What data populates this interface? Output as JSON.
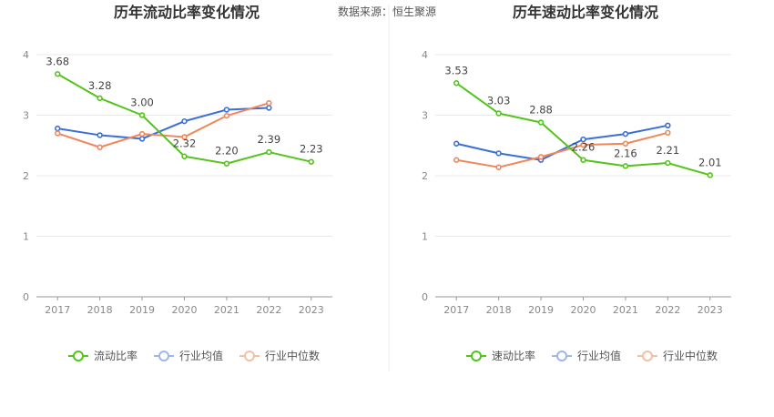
{
  "source_note": "数据来源：恒生聚源",
  "chart_data": [
    {
      "type": "line",
      "title": "历年流动比率变化情况",
      "x": [
        "2017",
        "2018",
        "2019",
        "2020",
        "2021",
        "2022",
        "2023"
      ],
      "ylim": [
        0,
        4
      ],
      "yticks": [
        "0",
        "1",
        "2",
        "3",
        "4"
      ],
      "grid": true,
      "legend_position": "bottom",
      "series": [
        {
          "name": "流动比率",
          "color": "#52c41a",
          "values": [
            3.68,
            3.28,
            3.0,
            2.32,
            2.2,
            2.39,
            2.23
          ],
          "labels": [
            "3.68",
            "3.28",
            "3.00",
            "2.32",
            "2.20",
            "2.39",
            "2.23"
          ]
        },
        {
          "name": "行业均值",
          "color": "#3a6fd8",
          "values": [
            2.78,
            2.67,
            2.61,
            2.9,
            3.09,
            3.12,
            null
          ]
        },
        {
          "name": "行业中位数",
          "color": "#f0875a",
          "values": [
            2.7,
            2.47,
            2.69,
            2.64,
            2.99,
            3.2,
            null
          ]
        }
      ]
    },
    {
      "type": "line",
      "title": "历年速动比率变化情况",
      "x": [
        "2017",
        "2018",
        "2019",
        "2020",
        "2021",
        "2022",
        "2023"
      ],
      "ylim": [
        0,
        4
      ],
      "yticks": [
        "0",
        "1",
        "2",
        "3",
        "4"
      ],
      "grid": true,
      "legend_position": "bottom",
      "series": [
        {
          "name": "速动比率",
          "color": "#52c41a",
          "values": [
            3.53,
            3.03,
            2.88,
            2.26,
            2.16,
            2.21,
            2.01
          ],
          "labels": [
            "3.53",
            "3.03",
            "2.88",
            "2.26",
            "2.16",
            "2.21",
            "2.01"
          ]
        },
        {
          "name": "行业均值",
          "color": "#3a6fd8",
          "values": [
            2.53,
            2.37,
            2.26,
            2.6,
            2.69,
            2.83,
            null
          ]
        },
        {
          "name": "行业中位数",
          "color": "#f0875a",
          "values": [
            2.26,
            2.14,
            2.31,
            2.51,
            2.53,
            2.71,
            null
          ]
        }
      ]
    }
  ]
}
